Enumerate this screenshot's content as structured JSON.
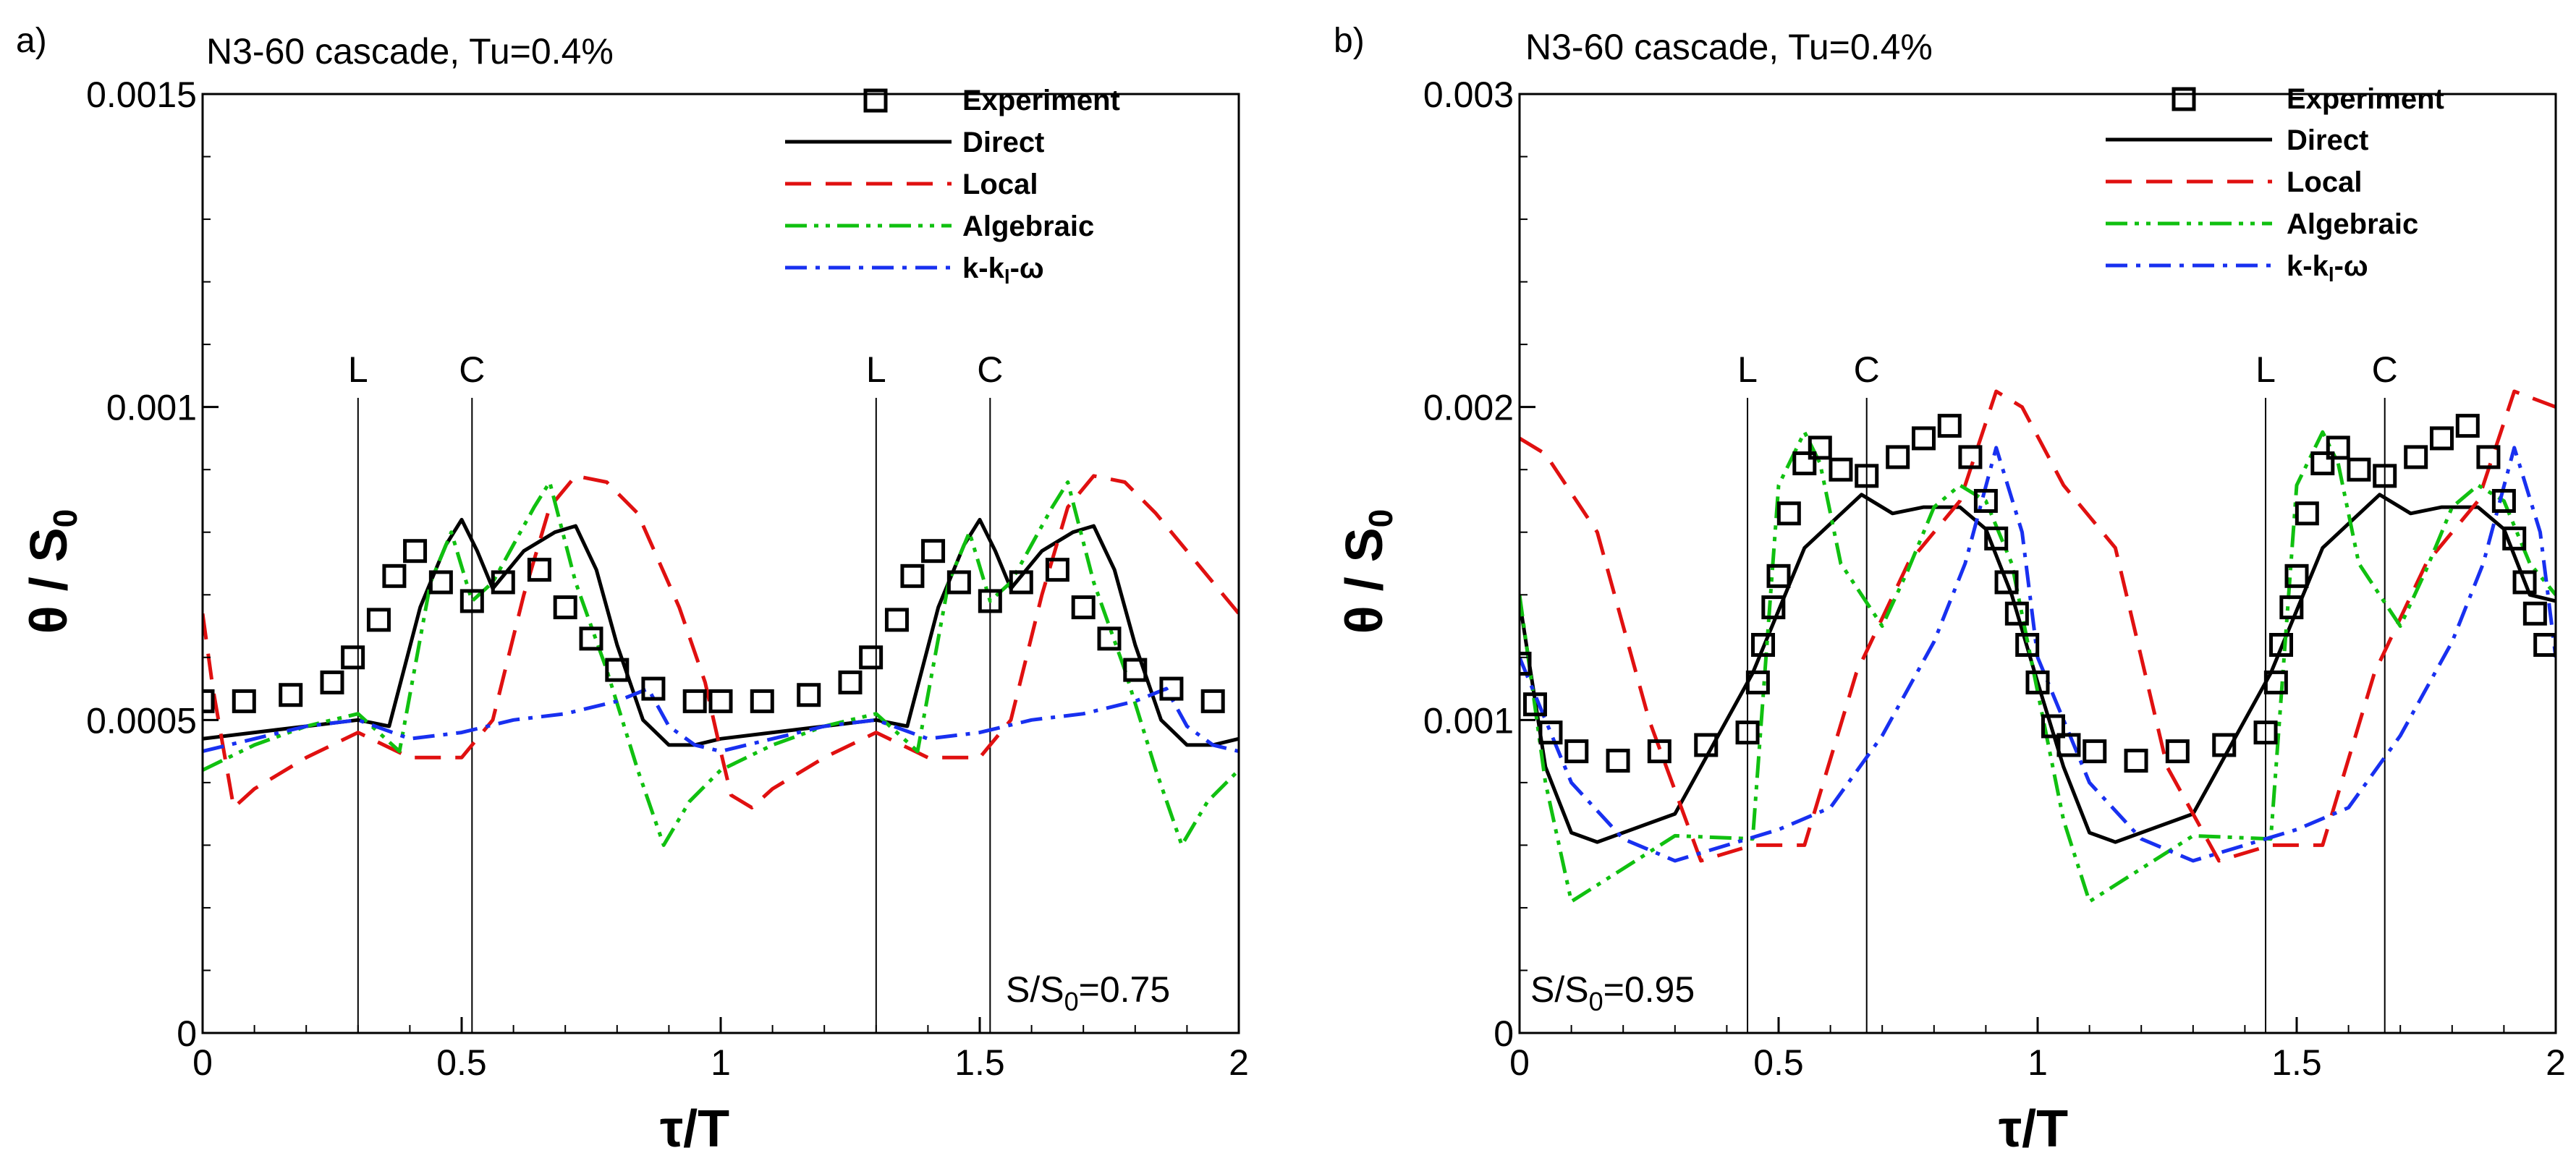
{
  "chart_data": [
    {
      "type": "line",
      "panel_letter": "a)",
      "title": "N3-60 cascade, Tu=0.4%",
      "xlabel": "τ/T",
      "ylabel_main": "θ / S",
      "ylabel_sub": "0",
      "xlim": [
        0,
        2
      ],
      "ylim": [
        0,
        0.0015
      ],
      "x_ticks": [
        0,
        0.5,
        1,
        1.5,
        2
      ],
      "x_tick_labels": [
        "0",
        "0.5",
        "1",
        "1.5",
        "2"
      ],
      "y_ticks": [
        0,
        0.0005,
        0.001,
        0.0015
      ],
      "y_tick_labels": [
        "0",
        "0.0005",
        "0.001",
        "0.0015"
      ],
      "y_minor_step": 0.0001,
      "annotation": {
        "main": "S/S",
        "sub": "0",
        "rest": "=0.75"
      },
      "vertical_markers": [
        {
          "label": "L",
          "x": 0.3
        },
        {
          "label": "C",
          "x": 0.52
        },
        {
          "label": "L",
          "x": 1.3
        },
        {
          "label": "C",
          "x": 1.52
        }
      ],
      "experiment": {
        "name": "Experiment",
        "x": [
          0.0,
          0.08,
          0.17,
          0.25,
          0.29,
          0.34,
          0.37,
          0.41,
          0.46,
          0.52,
          0.58,
          0.65,
          0.7,
          0.75,
          0.8,
          0.87,
          0.95,
          1.0,
          1.08,
          1.17,
          1.25,
          1.29,
          1.34,
          1.37,
          1.41,
          1.46,
          1.52,
          1.58,
          1.65,
          1.7,
          1.75,
          1.8,
          1.87,
          1.95
        ],
        "y": [
          0.00053,
          0.00053,
          0.00054,
          0.00056,
          0.0006,
          0.00066,
          0.00073,
          0.00077,
          0.00072,
          0.00069,
          0.00072,
          0.00074,
          0.00068,
          0.00063,
          0.00058,
          0.00055,
          0.00053,
          0.00053,
          0.00053,
          0.00054,
          0.00056,
          0.0006,
          0.00066,
          0.00073,
          0.00077,
          0.00072,
          0.00069,
          0.00072,
          0.00074,
          0.00068,
          0.00063,
          0.00058,
          0.00055,
          0.00053
        ]
      },
      "series": [
        {
          "name": "Direct",
          "color": "#000000",
          "dash": "",
          "x": [
            0,
            0.1,
            0.2,
            0.3,
            0.36,
            0.42,
            0.47,
            0.5,
            0.53,
            0.56,
            0.62,
            0.68,
            0.72,
            0.76,
            0.8,
            0.85,
            0.9,
            0.95,
            1.0,
            1.1,
            1.2,
            1.3,
            1.36,
            1.42,
            1.47,
            1.5,
            1.53,
            1.56,
            1.62,
            1.68,
            1.72,
            1.76,
            1.8,
            1.85,
            1.9,
            1.95,
            2.0
          ],
          "y": [
            0.00047,
            0.00048,
            0.00049,
            0.0005,
            0.00049,
            0.00068,
            0.00078,
            0.00082,
            0.00077,
            0.00071,
            0.00077,
            0.0008,
            0.00081,
            0.00074,
            0.00062,
            0.0005,
            0.00046,
            0.00046,
            0.00047,
            0.00048,
            0.00049,
            0.0005,
            0.00049,
            0.00068,
            0.00078,
            0.00082,
            0.00077,
            0.00071,
            0.00077,
            0.0008,
            0.00081,
            0.00074,
            0.00062,
            0.0005,
            0.00046,
            0.00046,
            0.00047
          ]
        },
        {
          "name": "Local",
          "color": "#e01010",
          "dash": "36 20",
          "x": [
            0,
            0.02,
            0.06,
            0.1,
            0.2,
            0.3,
            0.4,
            0.5,
            0.56,
            0.62,
            0.67,
            0.72,
            0.78,
            0.84,
            0.92,
            0.97,
            1.0,
            1.02,
            1.06,
            1.1,
            1.2,
            1.3,
            1.4,
            1.5,
            1.56,
            1.62,
            1.67,
            1.72,
            1.78,
            1.84,
            1.92,
            1.97,
            2.0
          ],
          "y": [
            0.00067,
            0.00055,
            0.00036,
            0.00039,
            0.00044,
            0.00048,
            0.00044,
            0.00044,
            0.0005,
            0.0007,
            0.00084,
            0.00089,
            0.00088,
            0.00083,
            0.00068,
            0.00056,
            0.00045,
            0.00038,
            0.00036,
            0.00039,
            0.00044,
            0.00048,
            0.00044,
            0.00044,
            0.0005,
            0.0007,
            0.00084,
            0.00089,
            0.00088,
            0.00083,
            0.00075,
            0.0007,
            0.00067
          ]
        },
        {
          "name": "Algebraic",
          "color": "#10c010",
          "dash": "30 10 6 10 6 10",
          "x": [
            0,
            0.1,
            0.2,
            0.3,
            0.38,
            0.44,
            0.48,
            0.52,
            0.56,
            0.6,
            0.64,
            0.67,
            0.72,
            0.78,
            0.84,
            0.89,
            0.94,
            1.0,
            1.1,
            1.2,
            1.3,
            1.38,
            1.44,
            1.48,
            1.52,
            1.56,
            1.6,
            1.64,
            1.67,
            1.72,
            1.78,
            1.84,
            1.89,
            1.94,
            2.0
          ],
          "y": [
            0.00042,
            0.00046,
            0.00049,
            0.00051,
            0.00045,
            0.00072,
            0.0008,
            0.00069,
            0.00072,
            0.00078,
            0.00084,
            0.00088,
            0.00072,
            0.00058,
            0.00042,
            0.0003,
            0.00037,
            0.00042,
            0.00046,
            0.00049,
            0.00051,
            0.00045,
            0.00072,
            0.0008,
            0.00069,
            0.00072,
            0.00078,
            0.00084,
            0.00088,
            0.00072,
            0.00058,
            0.00042,
            0.0003,
            0.00037,
            0.00042
          ]
        },
        {
          "name": "k-k_l-ω",
          "color": "#1830f0",
          "dash": "30 12 6 12",
          "x": [
            0,
            0.1,
            0.2,
            0.3,
            0.4,
            0.5,
            0.6,
            0.7,
            0.8,
            0.86,
            0.9,
            0.95,
            1.0,
            1.1,
            1.2,
            1.3,
            1.4,
            1.5,
            1.6,
            1.7,
            1.8,
            1.86,
            1.9,
            1.95,
            2.0
          ],
          "y": [
            0.00045,
            0.00047,
            0.00049,
            0.0005,
            0.00047,
            0.00048,
            0.0005,
            0.00051,
            0.00053,
            0.00055,
            0.00049,
            0.00046,
            0.00045,
            0.00047,
            0.00049,
            0.0005,
            0.00047,
            0.00048,
            0.0005,
            0.00051,
            0.00053,
            0.00055,
            0.00049,
            0.00046,
            0.00045
          ]
        }
      ]
    },
    {
      "type": "line",
      "panel_letter": "b)",
      "title": "N3-60 cascade, Tu=0.4%",
      "xlabel": "τ/T",
      "ylabel_main": "θ / S",
      "ylabel_sub": "0",
      "xlim": [
        0,
        2
      ],
      "ylim": [
        0,
        0.003
      ],
      "x_ticks": [
        0,
        0.5,
        1,
        1.5,
        2
      ],
      "x_tick_labels": [
        "0",
        "0.5",
        "1",
        "1.5",
        "2"
      ],
      "y_ticks": [
        0,
        0.001,
        0.002,
        0.003
      ],
      "y_tick_labels": [
        "0",
        "0.001",
        "0.002",
        "0.003"
      ],
      "y_minor_step": 0.0002,
      "annotation": {
        "main": "S/S",
        "sub": "0",
        "rest": "=0.95"
      },
      "vertical_markers": [
        {
          "label": "L",
          "x": 0.44
        },
        {
          "label": "C",
          "x": 0.67
        },
        {
          "label": "L",
          "x": 1.44
        },
        {
          "label": "C",
          "x": 1.67
        }
      ],
      "experiment": {
        "name": "Experiment",
        "x": [
          0.0,
          0.03,
          0.06,
          0.11,
          0.19,
          0.27,
          0.36,
          0.44,
          0.46,
          0.47,
          0.49,
          0.5,
          0.52,
          0.55,
          0.58,
          0.62,
          0.67,
          0.73,
          0.78,
          0.83,
          0.87,
          0.9,
          0.92,
          0.94,
          0.96,
          0.98,
          1.0,
          1.03,
          1.06,
          1.11,
          1.19,
          1.27,
          1.36,
          1.44,
          1.46,
          1.47,
          1.49,
          1.5,
          1.52,
          1.55,
          1.58,
          1.62,
          1.67,
          1.73,
          1.78,
          1.83,
          1.87,
          1.9,
          1.92,
          1.94,
          1.96,
          1.98
        ],
        "y": [
          0.00118,
          0.00105,
          0.00096,
          0.0009,
          0.00087,
          0.0009,
          0.00092,
          0.00096,
          0.00112,
          0.00124,
          0.00136,
          0.00146,
          0.00166,
          0.00182,
          0.00187,
          0.0018,
          0.00178,
          0.00184,
          0.0019,
          0.00194,
          0.00184,
          0.0017,
          0.00158,
          0.00144,
          0.00134,
          0.00124,
          0.00112,
          0.00098,
          0.00092,
          0.0009,
          0.00087,
          0.0009,
          0.00092,
          0.00096,
          0.00112,
          0.00124,
          0.00136,
          0.00146,
          0.00166,
          0.00182,
          0.00187,
          0.0018,
          0.00178,
          0.00184,
          0.0019,
          0.00194,
          0.00184,
          0.0017,
          0.00158,
          0.00144,
          0.00134,
          0.00124
        ]
      },
      "series": [
        {
          "name": "Direct",
          "color": "#000000",
          "dash": "",
          "x": [
            0,
            0.05,
            0.1,
            0.15,
            0.3,
            0.45,
            0.55,
            0.66,
            0.72,
            0.78,
            0.85,
            0.9,
            0.95,
            1.0,
            1.05,
            1.1,
            1.15,
            1.3,
            1.45,
            1.55,
            1.66,
            1.72,
            1.78,
            1.85,
            1.9,
            1.95,
            2.0
          ],
          "y": [
            0.00138,
            0.00085,
            0.00064,
            0.00061,
            0.0007,
            0.00115,
            0.00155,
            0.00172,
            0.00166,
            0.00168,
            0.00168,
            0.00161,
            0.0014,
            0.00112,
            0.00085,
            0.00064,
            0.00061,
            0.0007,
            0.00115,
            0.00155,
            0.00172,
            0.00166,
            0.00168,
            0.00168,
            0.00161,
            0.0014,
            0.00138
          ]
        },
        {
          "name": "Local",
          "color": "#e01010",
          "dash": "36 20",
          "x": [
            0,
            0.05,
            0.15,
            0.25,
            0.35,
            0.45,
            0.55,
            0.65,
            0.75,
            0.85,
            0.92,
            0.97,
            1.05,
            1.15,
            1.25,
            1.35,
            1.45,
            1.55,
            1.65,
            1.75,
            1.85,
            1.92,
            2.0
          ],
          "y": [
            0.0019,
            0.00185,
            0.0016,
            0.001,
            0.00055,
            0.0006,
            0.0006,
            0.00115,
            0.0015,
            0.0017,
            0.00205,
            0.002,
            0.00175,
            0.00155,
            0.00085,
            0.00055,
            0.0006,
            0.0006,
            0.00115,
            0.0015,
            0.0017,
            0.00205,
            0.002
          ]
        },
        {
          "name": "Algebraic",
          "color": "#10c010",
          "dash": "30 10 6 10 6 10",
          "x": [
            0,
            0.05,
            0.1,
            0.3,
            0.45,
            0.5,
            0.55,
            0.58,
            0.62,
            0.7,
            0.75,
            0.8,
            0.85,
            0.9,
            0.95,
            1.05,
            1.1,
            1.3,
            1.45,
            1.5,
            1.55,
            1.58,
            1.62,
            1.7,
            1.75,
            1.8,
            1.85,
            1.9,
            1.95,
            2.0
          ],
          "y": [
            0.0014,
            0.0008,
            0.00042,
            0.00063,
            0.00062,
            0.00175,
            0.00192,
            0.00182,
            0.0015,
            0.0013,
            0.00148,
            0.00168,
            0.00175,
            0.0017,
            0.0015,
            0.00068,
            0.00042,
            0.00063,
            0.00062,
            0.00175,
            0.00192,
            0.00182,
            0.0015,
            0.0013,
            0.00148,
            0.00168,
            0.00175,
            0.0017,
            0.0015,
            0.0014
          ]
        },
        {
          "name": "k-k_l-ω",
          "color": "#1830f0",
          "dash": "30 12 6 12",
          "x": [
            0,
            0.1,
            0.2,
            0.3,
            0.4,
            0.5,
            0.6,
            0.7,
            0.8,
            0.86,
            0.92,
            0.97,
            1.0,
            1.1,
            1.2,
            1.3,
            1.4,
            1.5,
            1.6,
            1.7,
            1.8,
            1.86,
            1.92,
            1.97,
            2.0
          ],
          "y": [
            0.0012,
            0.0008,
            0.00062,
            0.00055,
            0.0006,
            0.00065,
            0.00072,
            0.00095,
            0.00125,
            0.0015,
            0.00187,
            0.0016,
            0.0012,
            0.0008,
            0.00062,
            0.00055,
            0.0006,
            0.00065,
            0.00072,
            0.00095,
            0.00125,
            0.0015,
            0.00187,
            0.0016,
            0.0012
          ]
        }
      ]
    }
  ],
  "legend": {
    "experiment": "Experiment",
    "direct": "Direct",
    "local": "Local",
    "algebraic": "Algebraic",
    "kkl_main": "k-k",
    "kkl_sub": "l",
    "kkl_rest": "-ω"
  }
}
